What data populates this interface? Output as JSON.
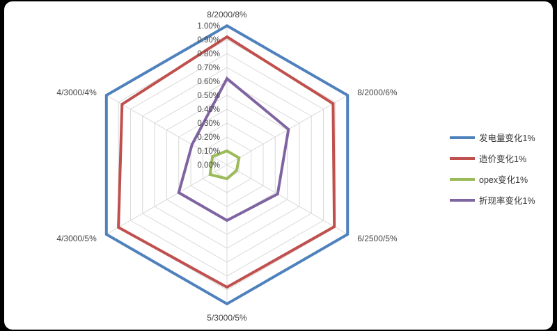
{
  "chart_data": {
    "type": "radar",
    "title": "",
    "categories": [
      "8/2000/8%",
      "8/2000/6%",
      "6/2500/5%",
      "5/3000/5%",
      "4/3000/5%",
      "4/3000/4%"
    ],
    "radial_ticks": [
      "0.00%",
      "0.10%",
      "0.20%",
      "0.30%",
      "0.40%",
      "0.50%",
      "0.60%",
      "0.70%",
      "0.80%",
      "0.90%",
      "1.00%"
    ],
    "rlim": [
      0,
      1.0
    ],
    "grid": true,
    "legend_position": "right",
    "series": [
      {
        "name": "发电量变化1%",
        "color": "#4f81bd",
        "values": [
          1.0,
          1.0,
          1.0,
          1.0,
          1.0,
          1.0
        ]
      },
      {
        "name": "造价变化1%",
        "color": "#c0504d",
        "values": [
          0.92,
          0.88,
          0.89,
          0.88,
          0.9,
          0.87
        ]
      },
      {
        "name": "opex变化1%",
        "color": "#9bbb59",
        "values": [
          0.1,
          0.1,
          0.08,
          0.1,
          0.14,
          0.12
        ]
      },
      {
        "name": "折现率变化1%",
        "color": "#8064a2",
        "values": [
          0.62,
          0.51,
          0.42,
          0.4,
          0.4,
          0.29
        ]
      }
    ]
  }
}
